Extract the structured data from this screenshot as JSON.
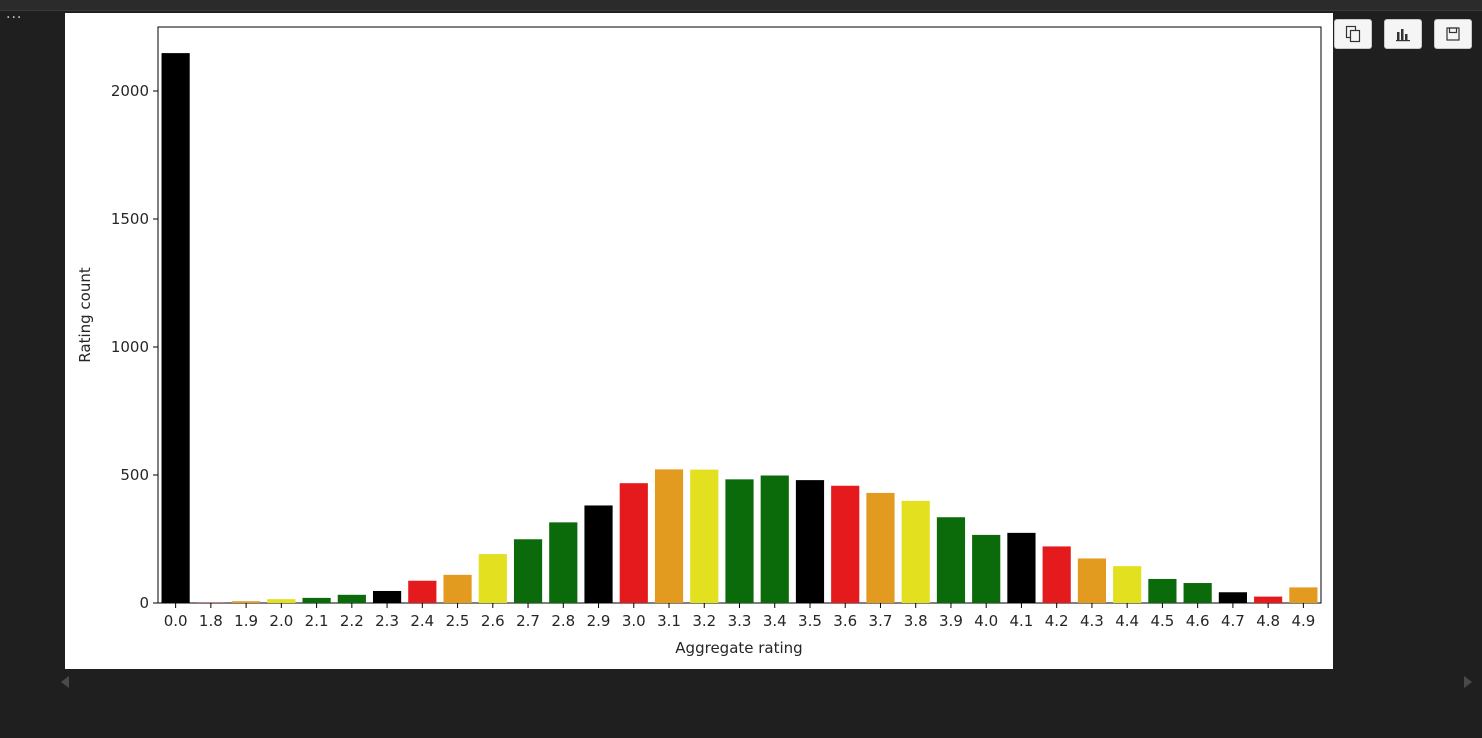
{
  "toolbar": {
    "more_label": "···",
    "buttons": [
      {
        "name": "copy-output-button",
        "icon": "copy-icon"
      },
      {
        "name": "open-chart-button",
        "icon": "bar-chart-icon"
      },
      {
        "name": "save-output-button",
        "icon": "save-icon"
      }
    ]
  },
  "chart_data": {
    "type": "bar",
    "title": "",
    "xlabel": "Aggregate rating",
    "ylabel": "Rating count",
    "ylim": [
      0,
      2250
    ],
    "yticks": [
      0,
      500,
      1000,
      1500,
      2000
    ],
    "grid": false,
    "legend": "none",
    "categories": [
      "0.0",
      "1.8",
      "1.9",
      "2.0",
      "2.1",
      "2.2",
      "2.3",
      "2.4",
      "2.5",
      "2.6",
      "2.7",
      "2.8",
      "2.9",
      "3.0",
      "3.1",
      "3.2",
      "3.3",
      "3.4",
      "3.5",
      "3.6",
      "3.7",
      "3.8",
      "3.9",
      "4.0",
      "4.1",
      "4.2",
      "4.3",
      "4.4",
      "4.5",
      "4.6",
      "4.7",
      "4.8",
      "4.9"
    ],
    "values": [
      2148,
      1,
      7,
      15,
      20,
      32,
      47,
      87,
      110,
      191,
      249,
      315,
      381,
      468,
      522,
      521,
      483,
      498,
      480,
      458,
      430,
      399,
      335,
      266,
      274,
      221,
      174,
      144,
      94,
      78,
      42,
      25,
      61
    ],
    "colors": [
      "#000000",
      "#e41a1c",
      "#e39b1f",
      "#e2e01f",
      "#0b6b0b",
      "#0b6b0b",
      "#000000",
      "#e41a1c",
      "#e39b1f",
      "#e2e01f",
      "#0b6b0b",
      "#0b6b0b",
      "#000000",
      "#e41a1c",
      "#e39b1f",
      "#e2e01f",
      "#0b6b0b",
      "#0b6b0b",
      "#000000",
      "#e41a1c",
      "#e39b1f",
      "#e2e01f",
      "#0b6b0b",
      "#0b6b0b",
      "#000000",
      "#e41a1c",
      "#e39b1f",
      "#e2e01f",
      "#0b6b0b",
      "#0b6b0b",
      "#000000",
      "#e41a1c",
      "#e39b1f"
    ]
  }
}
